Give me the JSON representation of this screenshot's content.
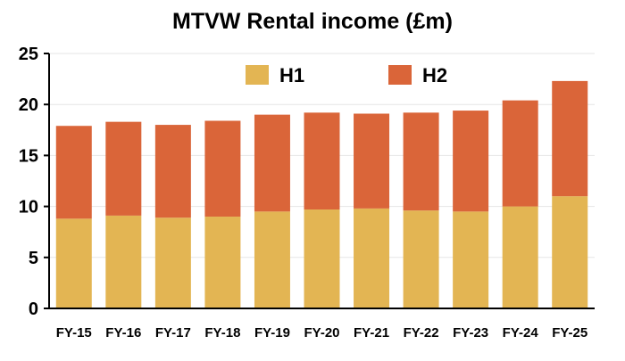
{
  "chart_data": {
    "type": "bar",
    "stacked": true,
    "title": "MTVW Rental income (£m)",
    "xlabel": "",
    "ylabel": "",
    "categories": [
      "FY-15",
      "FY-16",
      "FY-17",
      "FY-18",
      "FY-19",
      "FY-20",
      "FY-21",
      "FY-22",
      "FY-23",
      "FY-24",
      "FY-25"
    ],
    "series": [
      {
        "name": "H1",
        "color": "#E3B553",
        "values": [
          8.8,
          9.1,
          8.9,
          9.0,
          9.5,
          9.7,
          9.8,
          9.6,
          9.5,
          10.0,
          11.0
        ]
      },
      {
        "name": "H2",
        "color": "#DA6539",
        "values": [
          9.1,
          9.2,
          9.1,
          9.4,
          9.5,
          9.5,
          9.3,
          9.6,
          9.9,
          10.4,
          11.3
        ]
      }
    ],
    "ylim": [
      0,
      25
    ],
    "yticks": [
      0,
      5,
      10,
      15,
      20,
      25
    ],
    "grid": true,
    "legend_position": "top-center"
  }
}
